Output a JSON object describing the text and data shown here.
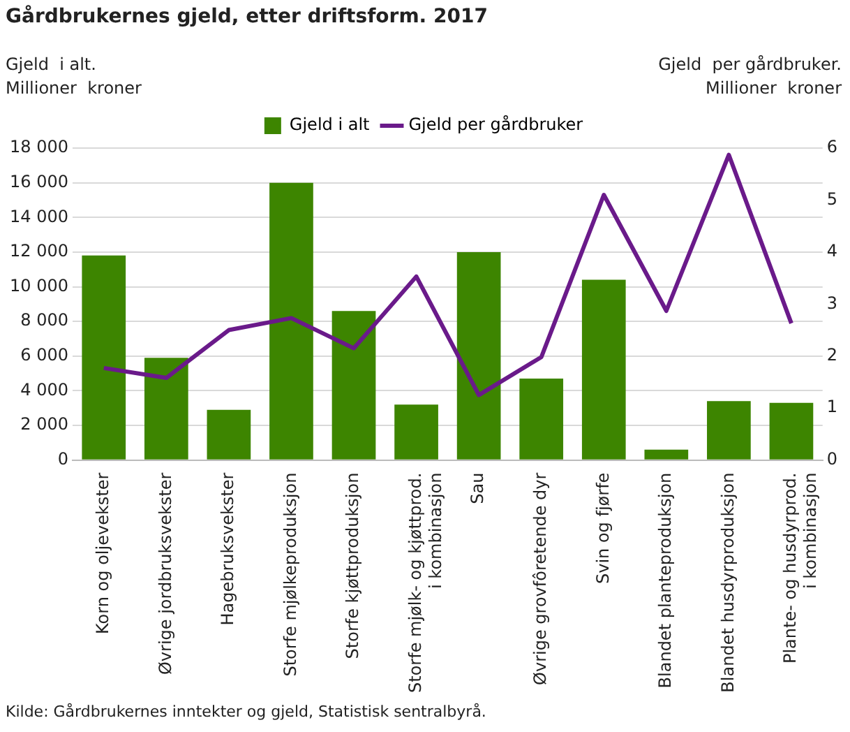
{
  "chart_data": {
    "type": "bar",
    "title": "Gårdbrukernes gjeld, etter driftsform. 2017",
    "ylabel": "Gjeld  i alt.\nMillioner  kroner",
    "y2label": "Gjeld  per gårdbruker.\nMillioner  kroner",
    "categories": [
      "Korn og oljevekster",
      "Øvrige jordbruksvekster",
      "Hagebruksvekster",
      "Storfe mjølkeproduksjon",
      "Storfe kjøttproduksjon",
      "Storfe mjølk- og kjøttprod.\ni kombinasjon",
      "Sau",
      "Øvrige grovfôretende dyr",
      "Svin og fjørfe",
      "Blandet planteproduksjon",
      "Blandet husdyrproduksjon",
      "Plante- og husdyrprod.\ni kombinasjon"
    ],
    "series": [
      {
        "name": "Gjeld i alt",
        "color": "#3d8500",
        "values": [
          11800,
          5900,
          2900,
          16000,
          8600,
          3200,
          12000,
          4700,
          10400,
          600,
          3400,
          3300
        ]
      },
      {
        "name": "Gjeld per gårdbruker",
        "type": "line",
        "axis": "y2",
        "color": "#6a1a8a",
        "values": [
          1.77,
          1.58,
          2.5,
          2.73,
          2.15,
          3.53,
          1.25,
          1.98,
          5.1,
          2.87,
          5.87,
          2.63
        ]
      }
    ],
    "ylim": [
      0,
      18000
    ],
    "yticks": [
      {
        "value": 0,
        "label": "0"
      },
      {
        "value": 2000,
        "label": "2 000"
      },
      {
        "value": 4000,
        "label": "4 000"
      },
      {
        "value": 6000,
        "label": "6 000"
      },
      {
        "value": 8000,
        "label": "8 000"
      },
      {
        "value": 10000,
        "label": "10 000"
      },
      {
        "value": 12000,
        "label": "12 000"
      },
      {
        "value": 14000,
        "label": "14 000"
      },
      {
        "value": 16000,
        "label": "16 000"
      },
      {
        "value": 18000,
        "label": "18 000"
      }
    ],
    "y2lim": [
      0,
      6
    ],
    "y2ticks": [
      0,
      1,
      2,
      3,
      4,
      5,
      6
    ],
    "grid": "y",
    "legend": "top",
    "marker": "none",
    "line_style": "solid",
    "annotations": [
      "Kilde: Gårdbrukernes inntekter og gjeld, Statistisk sentralbyrå."
    ]
  }
}
